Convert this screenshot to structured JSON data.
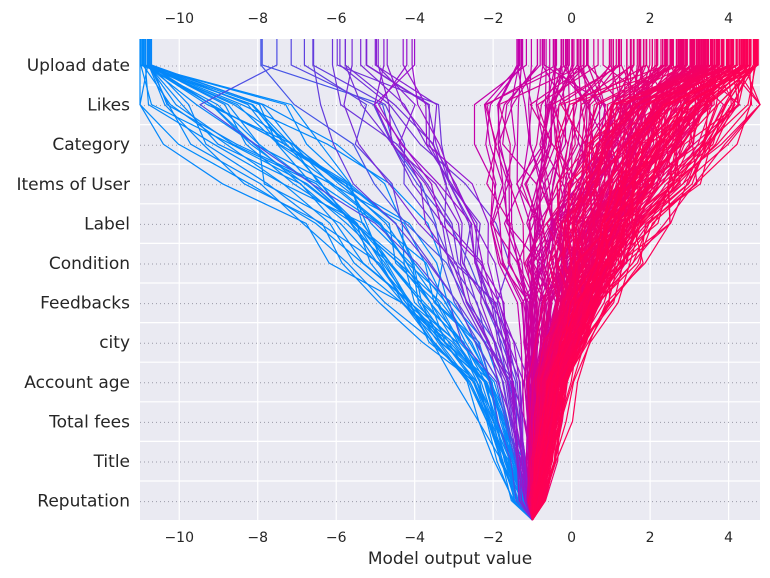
{
  "chart_data": {
    "type": "line",
    "subtype": "shap-decision-plot",
    "xlabel": "Model output value",
    "ylabel": "",
    "xlim": [
      -11,
      4.8
    ],
    "x_ticks": [
      -10,
      -8,
      -6,
      -4,
      -2,
      0,
      2,
      4
    ],
    "x_tick_labels": [
      "−10",
      "−8",
      "−6",
      "−4",
      "−2",
      "0",
      "2",
      "4"
    ],
    "base_value": -1.0,
    "features": [
      "Upload date",
      "Likes",
      "Category",
      "Items of User",
      "Label",
      "Condition",
      "Feedbacks",
      "city",
      "Account age",
      "Total fees",
      "Title",
      "Reputation"
    ],
    "color_scale": {
      "low": "#008bfb",
      "mid": "#b100c6",
      "high": "#ff0052"
    },
    "grid": true,
    "background": "#eaeaf2",
    "series_summary": {
      "count_approx": 300,
      "start_value_all": -1.0,
      "final_value_range": [
        -11,
        4.8
      ]
    }
  }
}
